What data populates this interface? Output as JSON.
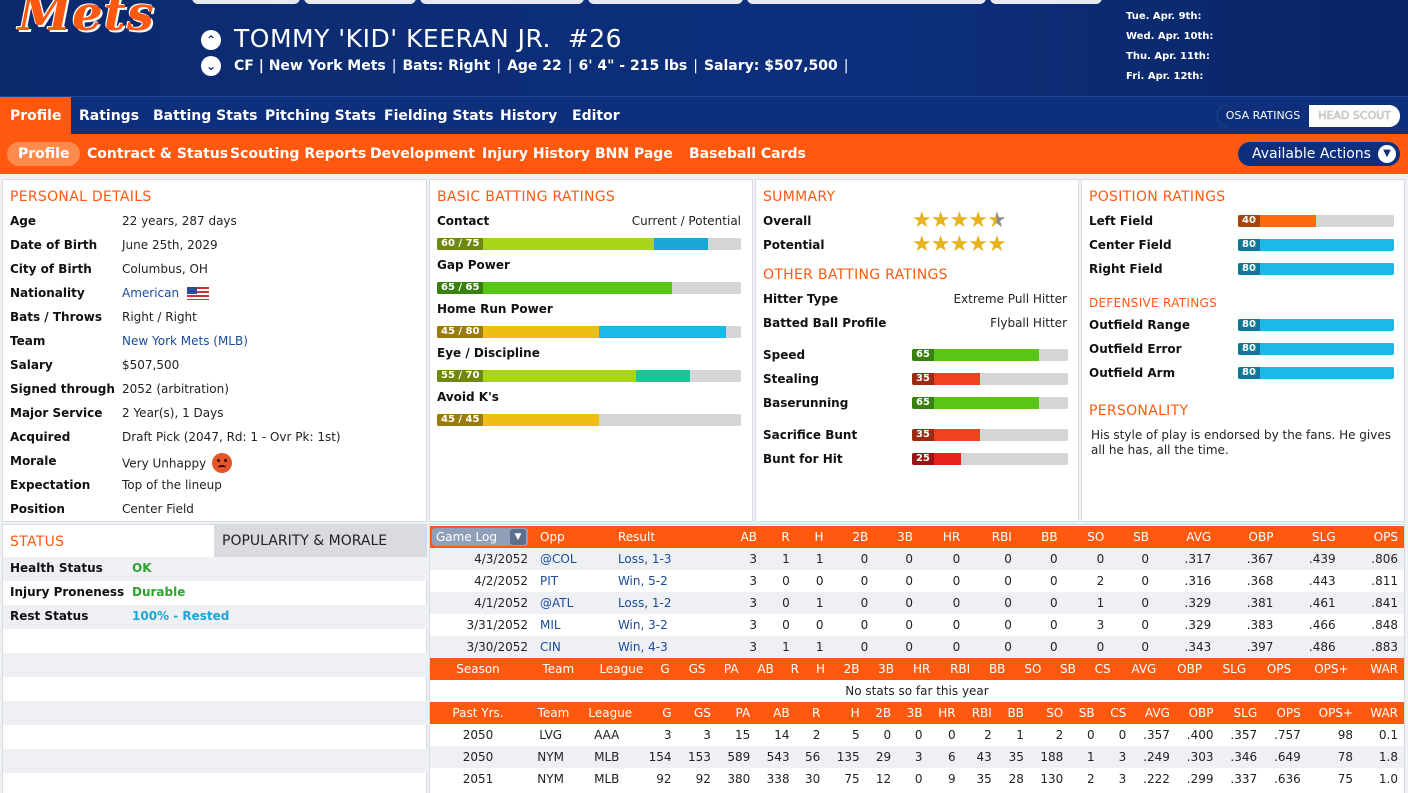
{
  "header": {
    "logo_text": "Mets",
    "player_name": "TOMMY 'KID' KEERAN JR.",
    "player_number": "#26",
    "info": [
      "CF | New York Mets",
      "Bats: Right",
      "Age 22",
      "6' 4\" - 215 lbs",
      "Salary: $507,500"
    ],
    "trailing_sep": "|",
    "schedule": [
      "Tue. Apr. 9th:",
      "Wed. Apr. 10th:",
      "Thu. Apr. 11th:",
      "Fri. Apr. 12th:"
    ]
  },
  "nav_primary": [
    "Profile",
    "Ratings",
    "Batting Stats",
    "Pitching Stats",
    "Fielding Stats",
    "History",
    "Editor"
  ],
  "ratings_toggle": {
    "active": "OSA RATINGS",
    "inactive": "HEAD SCOUT"
  },
  "nav_secondary": [
    "Profile",
    "Contract & Status",
    "Scouting Reports",
    "Development",
    "Injury History",
    "BNN Page",
    "Baseball Cards"
  ],
  "actions_label": "Available Actions",
  "personal": {
    "title": "PERSONAL DETAILS",
    "rows": [
      {
        "label": "Age",
        "value": "22 years, 287 days"
      },
      {
        "label": "Date of Birth",
        "value": "June 25th, 2029"
      },
      {
        "label": "City of Birth",
        "value": "Columbus, OH"
      },
      {
        "label": "Nationality",
        "value": "American"
      },
      {
        "label": "Bats / Throws",
        "value": "Right / Right"
      },
      {
        "label": "Team",
        "value": "New York Mets (MLB)"
      },
      {
        "label": "Salary",
        "value": "$507,500"
      },
      {
        "label": "Signed through",
        "value": "2052 (arbitration)"
      },
      {
        "label": "Major Service",
        "value": "2 Year(s), 1 Days"
      },
      {
        "label": "Acquired",
        "value": "Draft Pick (2047, Rd: 1 - Ovr Pk: 1st)"
      },
      {
        "label": "Morale",
        "value": "Very Unhappy"
      },
      {
        "label": "Expectation",
        "value": "Top of the lineup"
      },
      {
        "label": "Position",
        "value": "Center Field"
      }
    ]
  },
  "batting": {
    "title": "BASIC BATTING RATINGS",
    "legend": "Current / Potential",
    "ratings": [
      {
        "label": "Contact",
        "text": "60 / 75",
        "current": 60,
        "potential": 75,
        "cur_color": "#a8d518",
        "pot_color": "#1aa7d8"
      },
      {
        "label": "Gap Power",
        "text": "65 / 65",
        "current": 65,
        "potential": 65,
        "cur_color": "#57c618",
        "pot_color": "#57c618"
      },
      {
        "label": "Home Run Power",
        "text": "45 / 80",
        "current": 45,
        "potential": 80,
        "cur_color": "#f0bd14",
        "pot_color": "#1ab9e8"
      },
      {
        "label": "Eye / Discipline",
        "text": "55 / 70",
        "current": 55,
        "potential": 70,
        "cur_color": "#a8d518",
        "pot_color": "#1cc49a"
      },
      {
        "label": "Avoid K's",
        "text": "45 / 45",
        "current": 45,
        "potential": 45,
        "cur_color": "#f0bd14",
        "pot_color": "#f0bd14"
      }
    ]
  },
  "summary": {
    "title": "SUMMARY",
    "overall_label": "Overall",
    "overall_stars": 4.5,
    "potential_label": "Potential",
    "potential_stars": 5,
    "other_title": "OTHER BATTING RATINGS",
    "hitter_type_label": "Hitter Type",
    "hitter_type": "Extreme Pull Hitter",
    "batted_ball_label": "Batted Ball Profile",
    "batted_ball": "Flyball Hitter",
    "speed_ratings": [
      {
        "label": "Speed",
        "value": 65,
        "color": "#57c618"
      },
      {
        "label": "Stealing",
        "value": 35,
        "color": "#f0421e"
      },
      {
        "label": "Baserunning",
        "value": 65,
        "color": "#57c618"
      },
      {
        "label": "Sacrifice Bunt",
        "value": 35,
        "color": "#f0421e"
      },
      {
        "label": "Bunt for Hit",
        "value": 25,
        "color": "#e8201c"
      }
    ]
  },
  "position": {
    "title": "POSITION RATINGS",
    "ratings": [
      {
        "label": "Left Field",
        "value": 40,
        "color": "#ff6a10"
      },
      {
        "label": "Center Field",
        "value": 80,
        "color": "#1ab9e8"
      },
      {
        "label": "Right Field",
        "value": 80,
        "color": "#1ab9e8"
      }
    ],
    "defensive_title": "DEFENSIVE RATINGS",
    "defensive": [
      {
        "label": "Outfield Range",
        "value": 80,
        "color": "#1ab9e8"
      },
      {
        "label": "Outfield Error",
        "value": 80,
        "color": "#1ab9e8"
      },
      {
        "label": "Outfield Arm",
        "value": 80,
        "color": "#1ab9e8"
      }
    ],
    "personality_title": "PERSONALITY",
    "personality": "His style of play is endorsed by the fans. He gives all he has, all the time."
  },
  "status": {
    "tab_status": "STATUS",
    "tab_pop": "POPULARITY & MORALE",
    "rows": [
      {
        "label": "Health Status",
        "value": "OK",
        "color": "#2aa52a"
      },
      {
        "label": "Injury Proneness",
        "value": "Durable",
        "color": "#2aa52a"
      },
      {
        "label": "Rest Status",
        "value": "100% - Rested",
        "color": "#1aa7d8"
      }
    ]
  },
  "gamelog": {
    "selector": "Game Log",
    "headers": [
      "Opp",
      "Result",
      "AB",
      "R",
      "H",
      "2B",
      "3B",
      "HR",
      "RBI",
      "BB",
      "SO",
      "SB",
      "AVG",
      "OBP",
      "SLG",
      "OPS"
    ],
    "rows": [
      [
        "4/3/2052",
        "@COL",
        "Loss, 1-3",
        "3",
        "1",
        "1",
        "0",
        "0",
        "0",
        "0",
        "0",
        "0",
        "0",
        ".317",
        ".367",
        ".439",
        ".806"
      ],
      [
        "4/2/2052",
        "PIT",
        "Win, 5-2",
        "3",
        "0",
        "0",
        "0",
        "0",
        "0",
        "0",
        "0",
        "2",
        "0",
        ".316",
        ".368",
        ".443",
        ".811"
      ],
      [
        "4/1/2052",
        "@ATL",
        "Loss, 1-2",
        "3",
        "0",
        "1",
        "0",
        "0",
        "0",
        "0",
        "0",
        "1",
        "0",
        ".329",
        ".381",
        ".461",
        ".841"
      ],
      [
        "3/31/2052",
        "MIL",
        "Win, 3-2",
        "3",
        "0",
        "0",
        "0",
        "0",
        "0",
        "0",
        "0",
        "3",
        "0",
        ".329",
        ".383",
        ".466",
        ".848"
      ],
      [
        "3/30/2052",
        "CIN",
        "Win, 4-3",
        "3",
        "1",
        "1",
        "0",
        "0",
        "0",
        "0",
        "0",
        "0",
        "0",
        ".343",
        ".397",
        ".486",
        ".883"
      ]
    ]
  },
  "season": {
    "headers": [
      "Season",
      "Team",
      "League",
      "G",
      "GS",
      "PA",
      "AB",
      "R",
      "H",
      "2B",
      "3B",
      "HR",
      "RBI",
      "BB",
      "SO",
      "SB",
      "CS",
      "AVG",
      "OBP",
      "SLG",
      "OPS",
      "OPS+",
      "WAR"
    ],
    "empty_text": "No stats so far this year"
  },
  "past": {
    "headers": [
      "Past Yrs.",
      "Team",
      "League",
      "G",
      "GS",
      "PA",
      "AB",
      "R",
      "H",
      "2B",
      "3B",
      "HR",
      "RBI",
      "BB",
      "SO",
      "SB",
      "CS",
      "AVG",
      "OBP",
      "SLG",
      "OPS",
      "OPS+",
      "WAR"
    ],
    "rows": [
      [
        "2050",
        "LVG",
        "AAA",
        "3",
        "3",
        "15",
        "14",
        "2",
        "5",
        "0",
        "0",
        "0",
        "2",
        "1",
        "2",
        "0",
        "0",
        ".357",
        ".400",
        ".357",
        ".757",
        "98",
        "0.1"
      ],
      [
        "2050",
        "NYM",
        "MLB",
        "154",
        "153",
        "589",
        "543",
        "56",
        "135",
        "29",
        "3",
        "6",
        "43",
        "35",
        "188",
        "1",
        "3",
        ".249",
        ".303",
        ".346",
        ".649",
        "78",
        "1.8"
      ],
      [
        "2051",
        "NYM",
        "MLB",
        "92",
        "92",
        "380",
        "338",
        "30",
        "75",
        "12",
        "0",
        "9",
        "35",
        "28",
        "130",
        "2",
        "3",
        ".222",
        ".299",
        ".337",
        ".636",
        "75",
        "1.0"
      ]
    ]
  }
}
